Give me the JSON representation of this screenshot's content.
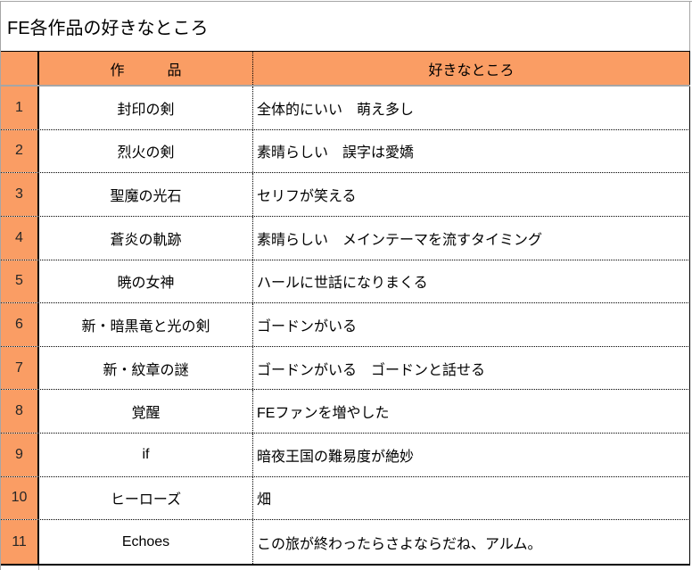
{
  "title": "FE各作品の好きなところ",
  "table": {
    "headers": {
      "no": "",
      "work": "作　　　品",
      "like": "好きなところ"
    },
    "rows": [
      {
        "no": "1",
        "work": "封印の剣",
        "like": "全体的にいい　萌え多し"
      },
      {
        "no": "2",
        "work": "烈火の剣",
        "like": "素晴らしい　誤字は愛嬌"
      },
      {
        "no": "3",
        "work": "聖魔の光石",
        "like": "セリフが笑える"
      },
      {
        "no": "4",
        "work": "蒼炎の軌跡",
        "like": "素晴らしい　メインテーマを流すタイミング"
      },
      {
        "no": "5",
        "work": "暁の女神",
        "like": "ハールに世話になりまくる"
      },
      {
        "no": "6",
        "work": "新・暗黒竜と光の剣",
        "like": "ゴードンがいる"
      },
      {
        "no": "7",
        "work": "新・紋章の謎",
        "like": "ゴードンがいる　ゴードンと話せる"
      },
      {
        "no": "8",
        "work": "覚醒",
        "like": "FEファンを増やした"
      },
      {
        "no": "9",
        "work": "if",
        "like": "暗夜王国の難易度が絶妙"
      },
      {
        "no": "10",
        "work": "ヒーローズ",
        "like": "畑"
      },
      {
        "no": "11",
        "work": "Echoes",
        "like": "この旅が終わったらさよならだね、アルム。"
      }
    ]
  },
  "colors": {
    "accent_fill": "#FA9D64",
    "grid_gray": "#A6A6A6",
    "border_black": "#000000",
    "row_number_text": "#262626",
    "body_text": "#000000"
  }
}
